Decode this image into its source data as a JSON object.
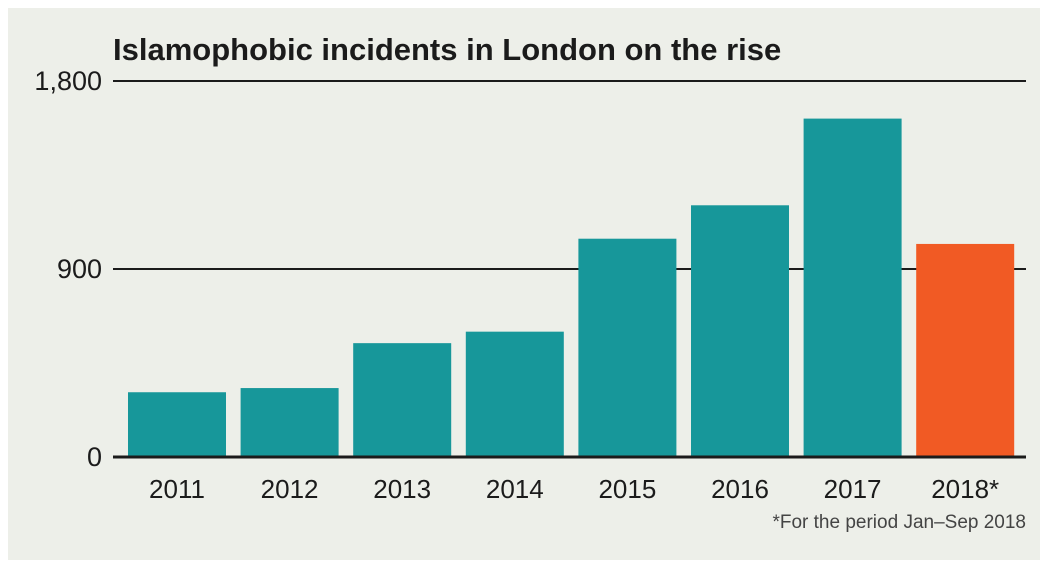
{
  "chart_data": {
    "type": "bar",
    "title": "Islamophobic incidents in London on the rise",
    "categories": [
      "2011",
      "2012",
      "2013",
      "2014",
      "2015",
      "2016",
      "2017",
      "2018*"
    ],
    "values": [
      310,
      330,
      545,
      600,
      1045,
      1205,
      1620,
      1020
    ],
    "ylim": [
      0,
      1800
    ],
    "yticks": [
      0,
      900,
      1800
    ],
    "ytick_labels": [
      "0",
      "900",
      "1,800"
    ],
    "grid": true,
    "legend": "none",
    "footnote": "*For the period Jan–Sep 2018",
    "colors": {
      "background": "#edefe9",
      "bar": "#17979a",
      "highlight_bar": "#f15a24",
      "axis": "#1b1b1b"
    },
    "highlight_index": 7
  }
}
